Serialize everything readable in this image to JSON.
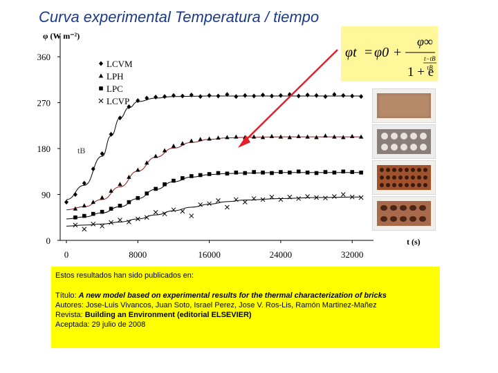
{
  "title": "Curva experimental Temperatura / tiempo",
  "formula": {
    "lhs": "φt",
    "eq": "=",
    "phi0": "φ0",
    "plus": "+",
    "num": "φ∞",
    "den_lead": "1 + e",
    "exp_num": "t−tB",
    "exp_den": "τB"
  },
  "annotation_label": "tB",
  "chart_data": {
    "type": "scatter",
    "ylabel": "φ (W m⁻²)",
    "xlabel": "t (s)",
    "xlim": [
      0,
      34000
    ],
    "ylim": [
      0,
      390
    ],
    "xticks": [
      0,
      8000,
      16000,
      24000,
      32000
    ],
    "yticks": [
      0,
      90,
      180,
      270,
      360
    ],
    "legend_position": "top-left",
    "series": [
      {
        "name": "LCVM",
        "marker": "diamond",
        "x": [
          0,
          1000,
          2000,
          3000,
          4000,
          5000,
          6000,
          7000,
          8000,
          9000,
          10000,
          11000,
          12000,
          13000,
          14000,
          15000,
          16000,
          17000,
          18000,
          19000,
          20000,
          21000,
          22000,
          23000,
          24000,
          25000,
          26000,
          27000,
          28000,
          29000,
          30000,
          31000,
          32000,
          33000
        ],
        "y": [
          75,
          90,
          112,
          140,
          170,
          208,
          240,
          262,
          274,
          279,
          281,
          282,
          284,
          283,
          285,
          282,
          284,
          283,
          286,
          282,
          284,
          283,
          285,
          283,
          284,
          286,
          283,
          285,
          284,
          282,
          286,
          284,
          283,
          282
        ]
      },
      {
        "name": "LPH",
        "marker": "triangle",
        "x": [
          1000,
          2000,
          3000,
          4000,
          5000,
          6000,
          7000,
          8000,
          9000,
          10000,
          11000,
          12000,
          13000,
          14000,
          15000,
          16000,
          17000,
          18000,
          19000,
          20000,
          21000,
          22000,
          23000,
          24000,
          25000,
          26000,
          27000,
          28000,
          29000,
          30000,
          31000,
          32000,
          33000
        ],
        "y": [
          62,
          68,
          75,
          84,
          97,
          110,
          124,
          138,
          152,
          165,
          176,
          185,
          190,
          195,
          198,
          199,
          201,
          202,
          203,
          202,
          203,
          202,
          204,
          203,
          202,
          204,
          203,
          202,
          205,
          203,
          202,
          204,
          203
        ]
      },
      {
        "name": "LPC",
        "marker": "square",
        "x": [
          1000,
          2000,
          3000,
          4000,
          5000,
          6000,
          7000,
          8000,
          9000,
          10000,
          11000,
          12000,
          13000,
          14000,
          15000,
          16000,
          17000,
          18000,
          19000,
          20000,
          21000,
          22000,
          23000,
          24000,
          25000,
          26000,
          27000,
          28000,
          29000,
          30000,
          31000,
          32000,
          33000
        ],
        "y": [
          45,
          48,
          52,
          56,
          62,
          68,
          75,
          83,
          92,
          101,
          110,
          117,
          122,
          126,
          128,
          130,
          132,
          131,
          133,
          132,
          134,
          133,
          132,
          134,
          133,
          135,
          133,
          132,
          134,
          133,
          135,
          134,
          133
        ]
      },
      {
        "name": "LCVP",
        "marker": "x",
        "x": [
          1000,
          2000,
          3000,
          4000,
          5000,
          6000,
          7000,
          8000,
          9000,
          10000,
          11000,
          12000,
          13000,
          14000,
          15000,
          16000,
          17000,
          18000,
          19000,
          20000,
          21000,
          22000,
          23000,
          24000,
          25000,
          26000,
          27000,
          28000,
          29000,
          30000,
          31000,
          32000,
          33000
        ],
        "y": [
          30,
          22,
          32,
          28,
          35,
          40,
          36,
          42,
          45,
          55,
          52,
          60,
          57,
          48,
          70,
          72,
          78,
          65,
          80,
          75,
          82,
          80,
          85,
          80,
          85,
          82,
          86,
          84,
          83,
          86,
          90,
          85,
          84
        ]
      }
    ],
    "fit_curves": [
      {
        "color": "#000000",
        "x": [
          0,
          2000,
          4000,
          5000,
          6000,
          7000,
          8000,
          10000,
          12000,
          16000,
          20000,
          24000,
          28000,
          33000
        ],
        "y": [
          80,
          108,
          165,
          205,
          240,
          260,
          272,
          279,
          282,
          283,
          283,
          283,
          283,
          283
        ]
      },
      {
        "color": "#8a1a1a",
        "x": [
          0,
          2000,
          4000,
          6000,
          8000,
          10000,
          12000,
          14000,
          16000,
          18000,
          20000,
          24000,
          28000,
          33000
        ],
        "y": [
          60,
          66,
          80,
          105,
          136,
          163,
          181,
          192,
          198,
          201,
          202,
          203,
          203,
          203
        ]
      },
      {
        "color": "#000000",
        "x": [
          0,
          2000,
          4000,
          6000,
          8000,
          10000,
          12000,
          14000,
          16000,
          18000,
          20000,
          24000,
          28000,
          33000
        ],
        "y": [
          42,
          46,
          54,
          66,
          82,
          100,
          115,
          124,
          129,
          131,
          132,
          133,
          133,
          133
        ]
      },
      {
        "color": "#000000",
        "x": [
          0,
          2000,
          4000,
          6000,
          8000,
          10000,
          12000,
          14000,
          16000,
          18000,
          20000,
          24000,
          28000,
          33000
        ],
        "y": [
          28,
          30,
          32,
          36,
          42,
          50,
          58,
          65,
          71,
          76,
          79,
          82,
          84,
          85
        ]
      }
    ]
  },
  "note": {
    "line1": "Estos resultados han sido publicados en:",
    "titulo_label": "Título: ",
    "titulo_value": "A new model based on experimental results for the thermal characterization of bricks",
    "autores": "Autores: Jose-Luis Vivancos, Juan Soto, Israel Perez, Jose V. Ros-Lis, Ramón Martinez-Mañez",
    "revista_label": "Revista: ",
    "revista_value": "Building an Environment (editorial ELSEVIER)",
    "aceptada": "Aceptada: 29 julio de 2008"
  },
  "colors": {
    "title": "#1a3a8c",
    "formula_bg": "#fff79a",
    "note_bg": "#ffff00",
    "arrow": "#e0202a",
    "brick": "#b07a58"
  },
  "photos": [
    {
      "name": "solid-brick-photo"
    },
    {
      "name": "brick-with-large-holes-photo"
    },
    {
      "name": "brick-with-many-small-holes-photo"
    },
    {
      "name": "brick-with-oval-holes-photo"
    }
  ]
}
